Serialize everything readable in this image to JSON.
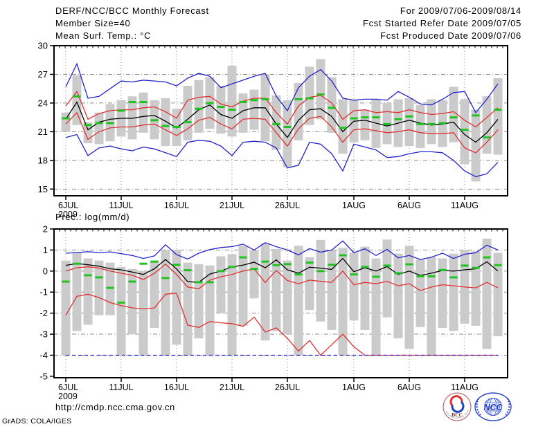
{
  "header": {
    "title": "DERF/NCC/BCC Monthly Forecast",
    "member_size": "Member Size=40",
    "temp_label": "Mean Surf. Temp.: °C",
    "for_range": "For 2009/07/06-2009/08/14",
    "refer_date": "Fcst Started Refer Date 2009/07/05",
    "produced_date": "Fcst Produced Date 2009/07/06"
  },
  "prec_label": "Prec.: log(mm/d)",
  "footer": {
    "url": "http://cmdp.ncc.cma.gov.cn",
    "credit": "GrADS: COLA/IGES",
    "bcc_logo_text": "BCC",
    "bcc_ring_text": "BEIJING CLIMATE CENTER",
    "ncc_logo_text": "NCC"
  },
  "colors": {
    "ensemble_line": "#2222cc",
    "std_line": "#e03030",
    "mean_line": "#000000",
    "obs_dash": "#1ec41e",
    "spread_bar": "#cbcbcb",
    "grid": "#8c8c8c",
    "frame": "#000000"
  },
  "chart_data": [
    {
      "type": "line",
      "name": "surface-temperature",
      "title": "Mean Surf. Temp.: °C",
      "ylabel": "degC",
      "n_days": 40,
      "ylim": [
        14.3,
        30
      ],
      "yticks": [
        30,
        27,
        24,
        21,
        18,
        15
      ],
      "ytick_labels": [
        "30",
        "27",
        "24",
        "21",
        "18",
        "15"
      ],
      "x_tick_days": [
        0,
        5,
        10,
        15,
        20,
        26,
        31,
        36
      ],
      "x_tick_labels": [
        "6JUL",
        "11JUL",
        "16JUL",
        "21JUL",
        "26JUL",
        "1AUG",
        "6AUG",
        "11AUG"
      ],
      "year_label": "2009",
      "bars": {
        "name": "member-spread",
        "hi": [
          23.0,
          26.9,
          22.0,
          23.0,
          23.9,
          24.3,
          24.7,
          25.1,
          24.3,
          24.5,
          23.4,
          25.8,
          26.4,
          26.7,
          25.8,
          27.9,
          25.0,
          25.4,
          27.0,
          24.8,
          24.3,
          26.1,
          27.8,
          28.6,
          26.7,
          24.4,
          24.3,
          23.3,
          24.4,
          24.0,
          24.4,
          24.5,
          23.8,
          24.4,
          24.3,
          25.7,
          24.4,
          23.3,
          24.7,
          26.6
        ],
        "lo": [
          21.0,
          21.7,
          19.8,
          19.7,
          20.0,
          20.5,
          20.2,
          20.9,
          20.2,
          19.5,
          19.5,
          20.1,
          20.9,
          21.3,
          20.8,
          20.5,
          20.9,
          21.2,
          20.0,
          19.1,
          17.3,
          20.1,
          21.7,
          22.3,
          20.9,
          18.7,
          19.9,
          20.1,
          19.3,
          19.7,
          19.4,
          19.5,
          19.3,
          19.7,
          19.4,
          19.9,
          17.6,
          15.8,
          18.7,
          18.6
        ]
      },
      "series": [
        {
          "name": "ensemble-min",
          "color": "#2222cc",
          "values": [
            20.4,
            20.7,
            18.5,
            19.3,
            19.5,
            19.2,
            19.0,
            19.4,
            19.2,
            18.8,
            18.4,
            19.9,
            20.1,
            20.0,
            19.5,
            18.5,
            19.9,
            20.0,
            19.9,
            19.3,
            17.2,
            17.5,
            19.9,
            19.7,
            18.7,
            16.9,
            19.7,
            19.4,
            19.1,
            18.3,
            18.4,
            18.7,
            18.9,
            18.9,
            18.8,
            18.0,
            16.9,
            16.3,
            16.6,
            17.8
          ]
        },
        {
          "name": "ensemble-max",
          "color": "#2222cc",
          "values": [
            25.7,
            28.1,
            24.5,
            24.7,
            25.5,
            26.3,
            26.2,
            26.4,
            26.3,
            26.2,
            25.8,
            26.6,
            27.1,
            26.8,
            25.6,
            26.0,
            26.4,
            26.8,
            27.1,
            24.7,
            23.2,
            25.6,
            26.8,
            27.5,
            26.3,
            24.5,
            24.3,
            24.4,
            24.4,
            24.3,
            25.2,
            24.6,
            23.9,
            23.8,
            24.4,
            25.1,
            25.2,
            23.0,
            24.4,
            26.0
          ]
        },
        {
          "name": "mean-minus-std",
          "color": "#e03030",
          "values": [
            21.8,
            23.0,
            20.2,
            21.0,
            21.4,
            21.5,
            21.5,
            21.7,
            21.8,
            21.2,
            20.6,
            21.3,
            22.2,
            22.5,
            21.8,
            21.3,
            22.3,
            22.4,
            22.3,
            20.9,
            19.5,
            21.3,
            22.4,
            22.6,
            21.5,
            19.9,
            21.2,
            21.3,
            21.1,
            20.9,
            21.0,
            21.2,
            20.9,
            20.8,
            20.8,
            20.9,
            19.3,
            18.8,
            19.9,
            21.2
          ]
        },
        {
          "name": "mean-plus-std",
          "color": "#e03030",
          "values": [
            23.7,
            25.2,
            22.3,
            22.9,
            23.2,
            23.3,
            23.3,
            23.5,
            23.6,
            23.1,
            22.4,
            24.3,
            24.6,
            24.7,
            23.9,
            23.6,
            24.2,
            24.5,
            24.5,
            23.0,
            21.8,
            23.7,
            24.6,
            24.8,
            24.0,
            22.3,
            23.2,
            23.3,
            23.0,
            23.1,
            23.0,
            23.3,
            23.0,
            22.8,
            22.9,
            23.1,
            22.2,
            21.5,
            22.5,
            23.5
          ]
        },
        {
          "name": "ensemble-mean",
          "color": "#000000",
          "values": [
            22.3,
            24.1,
            21.2,
            22.0,
            22.3,
            22.4,
            22.4,
            22.6,
            22.7,
            22.1,
            21.4,
            22.3,
            23.3,
            23.8,
            22.8,
            22.4,
            23.2,
            23.5,
            23.5,
            21.8,
            20.4,
            22.2,
            23.3,
            23.4,
            22.6,
            21.0,
            22.1,
            22.2,
            21.9,
            21.6,
            21.9,
            22.2,
            21.9,
            21.7,
            21.8,
            22.0,
            20.7,
            19.9,
            20.9,
            22.3
          ]
        }
      ],
      "obs": {
        "name": "observation",
        "color": "#1ec41e",
        "values": [
          22.4,
          24.7,
          21.7,
          21.9,
          21.9,
          23.2,
          24.1,
          24.1,
          22.2,
          21.6,
          21.5,
          22.0,
          23.4,
          24.0,
          23.6,
          23.3,
          24.1,
          24.3,
          24.4,
          21.8,
          21.5,
          24.4,
          24.5,
          24.9,
          23.5,
          21.4,
          22.4,
          22.5,
          22.5,
          21.8,
          22.3,
          22.6,
          21.8,
          21.8,
          21.9,
          22.5,
          21.2,
          22.7,
          20.4,
          23.3
        ]
      }
    },
    {
      "type": "line",
      "name": "precipitation",
      "title": "Prec.: log(mm/d)",
      "ylabel": "log(mm/d)",
      "n_days": 40,
      "ylim": [
        -5.07,
        2
      ],
      "yticks": [
        2,
        1,
        0,
        -1,
        -2,
        -3,
        -4,
        -5
      ],
      "ytick_labels": [
        "2",
        "1",
        "0",
        "-1",
        "-2",
        "-3",
        "-4",
        "-5"
      ],
      "x_tick_days": [
        0,
        5,
        10,
        15,
        20,
        26,
        31,
        36
      ],
      "x_tick_labels": [
        "6JUL",
        "11JUL",
        "16JUL",
        "21JUL",
        "26JUL",
        "1AUG",
        "6AUG",
        "11AUG"
      ],
      "year_label": "2009",
      "bars": {
        "name": "member-spread",
        "hi": [
          0.5,
          0.9,
          0.6,
          0.5,
          0.4,
          0.2,
          0.1,
          0.0,
          0.5,
          1.0,
          1.02,
          0.4,
          0.33,
          0.27,
          0.7,
          0.8,
          1.2,
          0.99,
          1.32,
          1.05,
          0.5,
          1.2,
          0.66,
          1.48,
          1.0,
          1.1,
          0.87,
          1.16,
          0.6,
          1.5,
          0.83,
          1.2,
          0.55,
          0.66,
          0.6,
          0.83,
          1.0,
          0.94,
          1.54,
          0.87
        ],
        "lo": [
          -4.0,
          -2.85,
          -2.55,
          -2.1,
          -2.1,
          -4.0,
          -3.0,
          -4.0,
          -2.7,
          -4.0,
          -3.5,
          -4.0,
          -3.2,
          -4.0,
          -2.0,
          -4.0,
          -2.6,
          -1.3,
          -3.3,
          -2.85,
          -3.0,
          -4.0,
          -1.85,
          -2.4,
          -2.8,
          -4.0,
          -2.35,
          -2.8,
          -4.0,
          -2.2,
          -3.2,
          -3.7,
          -2.66,
          -4.0,
          -2.7,
          -2.85,
          -2.5,
          -2.6,
          -3.7,
          -3.1
        ]
      },
      "series": [
        {
          "name": "mean-minus-std",
          "color": "#e03030",
          "values": [
            -2.1,
            -1.2,
            -1.1,
            -1.26,
            -1.5,
            -1.64,
            -1.75,
            -1.8,
            -1.75,
            -1.1,
            -1.05,
            -2.57,
            -2.68,
            -2.4,
            -2.46,
            -2.5,
            -2.63,
            -2.19,
            -2.9,
            -2.7,
            -3.2,
            -3.8,
            -3.3,
            -4.0,
            -3.5,
            -3.0,
            -3.6,
            -4.0,
            -4.0,
            -4.0,
            -4.0,
            -4.0,
            -4.0,
            -4.0,
            -4.0,
            -4.0,
            -4.0,
            -4.0,
            -4.0,
            -4.0
          ]
        },
        {
          "name": "ensemble-min",
          "color": "#2222cc",
          "dash": "5 4",
          "values": [
            -4.0,
            -4.0,
            -4.0,
            -4.0,
            -4.0,
            -4.0,
            -4.0,
            -4.0,
            -4.0,
            -4.0,
            -4.0,
            -4.0,
            -4.0,
            -4.0,
            -4.0,
            -4.0,
            -4.0,
            -4.0,
            -4.0,
            -4.0,
            -4.0,
            -4.0,
            -4.0,
            -4.0,
            -4.0,
            -4.0,
            -4.0,
            -4.0,
            -4.0,
            -4.0,
            -4.0,
            -4.0,
            -4.0,
            -4.0,
            -4.0,
            -4.0,
            -4.0,
            -4.0,
            -4.0,
            -4.0
          ]
        },
        {
          "name": "ensemble-max",
          "color": "#2222cc",
          "values": [
            0.85,
            0.88,
            0.92,
            0.88,
            0.91,
            0.83,
            0.74,
            0.6,
            0.72,
            1.25,
            0.78,
            0.57,
            0.85,
            1.02,
            1.12,
            1.16,
            1.28,
            1.0,
            1.35,
            1.16,
            1.0,
            0.77,
            1.07,
            0.9,
            1.0,
            1.43,
            0.87,
            1.06,
            0.74,
            1.03,
            0.63,
            0.74,
            0.55,
            0.66,
            0.85,
            0.6,
            0.8,
            0.87,
            1.23,
            1.0
          ]
        },
        {
          "name": "mean-plus-std",
          "color": "#e03030",
          "values": [
            0.0,
            0.16,
            0.2,
            0.14,
            0.0,
            -0.1,
            -0.2,
            -0.4,
            -0.1,
            0.33,
            -0.16,
            -0.76,
            -0.84,
            -0.43,
            -0.27,
            -0.16,
            0.0,
            0.1,
            -0.54,
            0.03,
            -0.45,
            -0.6,
            -0.43,
            -0.49,
            -0.54,
            0.0,
            -0.65,
            -0.54,
            -0.6,
            -0.49,
            -0.7,
            -0.6,
            -0.93,
            -0.76,
            -0.65,
            -0.7,
            -0.76,
            -0.8,
            -0.54,
            -0.8
          ]
        },
        {
          "name": "ensemble-mean",
          "color": "#000000",
          "values": [
            0.27,
            0.36,
            0.3,
            0.23,
            0.11,
            0.06,
            -0.05,
            -0.16,
            0.11,
            0.55,
            0.1,
            -0.5,
            -0.54,
            -0.14,
            0.0,
            0.2,
            0.28,
            0.42,
            0.16,
            0.53,
            0.06,
            -0.1,
            0.18,
            0.14,
            0.08,
            0.6,
            -0.03,
            0.16,
            0.0,
            0.21,
            -0.16,
            0.0,
            -0.21,
            -0.1,
            0.03,
            0.0,
            0.06,
            0.11,
            0.44,
            0.0
          ]
        }
      ],
      "obs": {
        "name": "observation",
        "color": "#1ec41e",
        "values": [
          -0.5,
          0.35,
          -0.2,
          -0.3,
          -0.8,
          -1.5,
          -0.5,
          0.35,
          0.45,
          -0.33,
          0.3,
          0.04,
          -0.53,
          -0.53,
          0.0,
          0.2,
          0.65,
          0.1,
          0.45,
          0.28,
          0.33,
          -0.16,
          0.4,
          0.0,
          0.3,
          0.75,
          -0.16,
          0.2,
          -0.27,
          0.26,
          -0.1,
          0.32,
          -0.25,
          -0.25,
          0.05,
          -0.3,
          0.26,
          0.15,
          0.65,
          0.28
        ]
      }
    }
  ]
}
